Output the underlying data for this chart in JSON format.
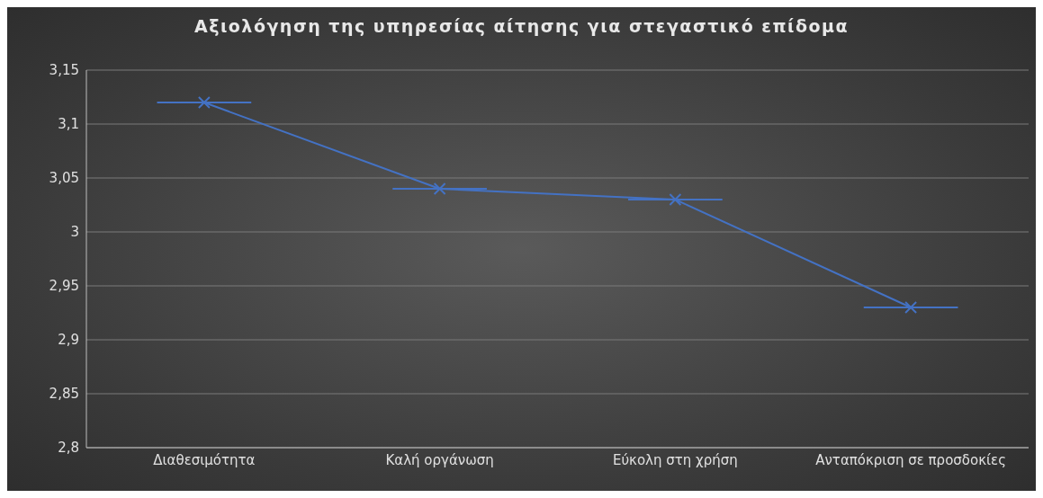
{
  "chart_data": {
    "type": "line",
    "title": "Αξιολόγηση της υπηρεσίας αίτησης για στεγαστικό επίδομα",
    "categories": [
      "Διαθεσιμότητα",
      "Καλή οργάνωση",
      "Εύκολη στη χρήση",
      "Ανταπόκριση σε προσδοκίες"
    ],
    "series": [
      {
        "color": "#4472c4",
        "values": [
          3.12,
          3.04,
          3.03,
          2.93
        ]
      }
    ],
    "ylim": [
      2.8,
      3.15
    ],
    "yticks": [
      {
        "value": 2.8,
        "label": "2,8"
      },
      {
        "value": 2.85,
        "label": "2,85"
      },
      {
        "value": 2.9,
        "label": "2,9"
      },
      {
        "value": 2.95,
        "label": "2,95"
      },
      {
        "value": 3,
        "label": "3"
      },
      {
        "value": 3.05,
        "label": "3,05"
      },
      {
        "value": 3.1,
        "label": "3,1"
      },
      {
        "value": 3.15,
        "label": "3,15"
      }
    ],
    "grid": "y",
    "marker": "cross",
    "line_style": "solid"
  }
}
